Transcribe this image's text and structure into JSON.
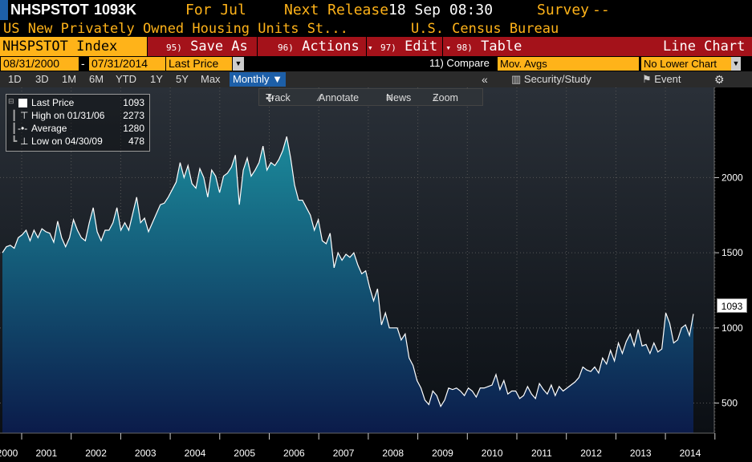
{
  "header": {
    "ticker": "NHSPSTOT",
    "last_value": "1093K",
    "for_label": "For Jul",
    "next_release_label": "Next Release",
    "next_release_value": "18 Sep 08:30",
    "survey_label": "Survey",
    "survey_value": "--",
    "description": "US New Privately Owned Housing Units St...",
    "source": "U.S. Census Bureau"
  },
  "menubar": {
    "index_label": "NHSPSTOT Index",
    "items": [
      {
        "num": "95)",
        "label": "Save As"
      },
      {
        "num": "96)",
        "label": "Actions",
        "arrow": "▾"
      },
      {
        "num": "97)",
        "label": "Edit",
        "arrow": "▾"
      },
      {
        "num": "98)",
        "label": "Table"
      }
    ],
    "chart_type": "Line Chart"
  },
  "options": {
    "start_date": "08/31/2000",
    "dash": "-",
    "end_date": "07/31/2014",
    "field": "Last Price",
    "compare_label": "11) Compare",
    "compare_value": "Mov. Avgs",
    "lower_chart": "No Lower Chart"
  },
  "periods": {
    "items": [
      "1D",
      "3D",
      "1M",
      "6M",
      "YTD",
      "1Y",
      "5Y",
      "Max"
    ],
    "selected": "Monthly ▼",
    "collapse": "«",
    "security_study": "Security/Study",
    "event": "Event",
    "settings_icon": "gear-icon"
  },
  "tools": {
    "track": "Track",
    "annotate": "Annotate",
    "news": "News",
    "zoom": "Zoom"
  },
  "legend": {
    "last_price_label": "Last Price",
    "last_price_value": "1093",
    "high_label": "High on 01/31/06",
    "high_value": "2273",
    "average_label": "Average",
    "average_value": "1280",
    "low_label": "Low on 04/30/09",
    "low_value": "478"
  },
  "colors": {
    "accent": "#ffb319",
    "menu_red": "#a4121a",
    "fill_top": "#1b8a9b",
    "fill_bottom": "#0b1b4a",
    "line": "#ffffff"
  },
  "chart_data": {
    "type": "area",
    "x_tick_labels": [
      "2000",
      "2001",
      "2002",
      "2003",
      "2004",
      "2005",
      "2006",
      "2007",
      "2008",
      "2009",
      "2010",
      "2011",
      "2012",
      "2013",
      "2014"
    ],
    "y_tick_labels": [
      "500",
      "1000",
      "1500",
      "2000"
    ],
    "last_value_label": "1093",
    "ylim": [
      300,
      2600
    ],
    "series": [
      {
        "values": [
          1500,
          1540,
          1550,
          1530,
          1600,
          1620,
          1650,
          1580,
          1650,
          1600,
          1660,
          1640,
          1630,
          1570,
          1710,
          1600,
          1540,
          1600,
          1720,
          1650,
          1600,
          1580,
          1700,
          1800,
          1640,
          1580,
          1650,
          1650,
          1700,
          1800,
          1650,
          1700,
          1650,
          1760,
          1870,
          1700,
          1730,
          1640,
          1700,
          1760,
          1820,
          1830,
          1870,
          1920,
          1970,
          2100,
          2000,
          2080,
          1960,
          1930,
          2060,
          2000,
          1870,
          2050,
          2010,
          1900,
          2010,
          2030,
          2070,
          2150,
          1820,
          2050,
          2130,
          2010,
          2050,
          2100,
          2210,
          2050,
          2100,
          2080,
          2120,
          2180,
          2273,
          2130,
          1950,
          1850,
          1850,
          1800,
          1750,
          1650,
          1720,
          1580,
          1560,
          1630,
          1400,
          1500,
          1450,
          1490,
          1470,
          1500,
          1420,
          1360,
          1380,
          1270,
          1180,
          1260,
          1020,
          1100,
          1000,
          1000,
          1000,
          920,
          960,
          800,
          750,
          650,
          600,
          520,
          490,
          580,
          550,
          478,
          520,
          600,
          590,
          600,
          580,
          550,
          600,
          580,
          540,
          600,
          600,
          610,
          620,
          690,
          590,
          650,
          560,
          580,
          580,
          530,
          550,
          610,
          560,
          530,
          630,
          590,
          560,
          620,
          550,
          610,
          580,
          600,
          620,
          640,
          670,
          740,
          720,
          710,
          740,
          700,
          800,
          760,
          850,
          780,
          900,
          830,
          910,
          960,
          880,
          990,
          880,
          890,
          830,
          900,
          840,
          860,
          1100,
          1030,
          900,
          920,
          1000,
          1020,
          950,
          1093
        ]
      }
    ]
  }
}
